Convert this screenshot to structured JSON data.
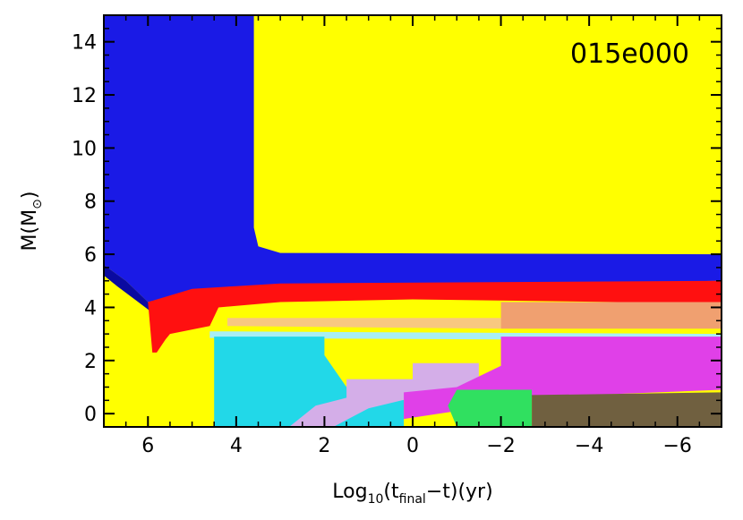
{
  "chart_data": {
    "type": "heatmap",
    "title": "",
    "model_label": "015e000",
    "xlabel": {
      "main": "Log",
      "sub1": "10",
      "mid": "(t",
      "sub2": "final",
      "end": "−t)(yr)"
    },
    "ylabel": {
      "main": "M(M",
      "sub": "⊙",
      "end": ")"
    },
    "xlim": [
      7,
      -7
    ],
    "ylim": [
      -0.5,
      15
    ],
    "x_reversed": true,
    "x_ticks": [
      {
        "value": 6,
        "label": "6"
      },
      {
        "value": 4,
        "label": "4"
      },
      {
        "value": 2,
        "label": "2"
      },
      {
        "value": 0,
        "label": "0"
      },
      {
        "value": -2,
        "label": "−2"
      },
      {
        "value": -4,
        "label": "−4"
      },
      {
        "value": -6,
        "label": "−6"
      }
    ],
    "y_ticks": [
      {
        "value": 0,
        "label": "0"
      },
      {
        "value": 2,
        "label": "2"
      },
      {
        "value": 4,
        "label": "4"
      },
      {
        "value": 6,
        "label": "6"
      },
      {
        "value": 8,
        "label": "8"
      },
      {
        "value": 10,
        "label": "10"
      },
      {
        "value": 12,
        "label": "12"
      },
      {
        "value": 14,
        "label": "14"
      }
    ],
    "grid": false,
    "colors": {
      "yellow": "#ffff00",
      "blue": "#1a1ae6",
      "red": "#ff1010",
      "cyan": "#22d8e8",
      "pale_cyan": "#a8eef4",
      "lavender": "#d4aee8",
      "magenta": "#e040e8",
      "green": "#30e060",
      "olive": "#706040",
      "salmon": "#f0a070",
      "orange": "#f8c880",
      "dark_blue": "#0a0aa0"
    },
    "regions": [
      {
        "name": "envelope-yellow",
        "color": "yellow",
        "polygon": [
          [
            7,
            -0.5
          ],
          [
            -7,
            -0.5
          ],
          [
            -7,
            15
          ],
          [
            7,
            15
          ]
        ]
      },
      {
        "name": "outer-convective-blue",
        "color": "blue",
        "polygon": [
          [
            7,
            15
          ],
          [
            3.6,
            15
          ],
          [
            3.6,
            7
          ],
          [
            3.5,
            6.3
          ],
          [
            3,
            6.05
          ],
          [
            -7,
            6.0
          ],
          [
            -7,
            5.0
          ],
          [
            3,
            4.8
          ],
          [
            4,
            4.7
          ],
          [
            5,
            4.6
          ],
          [
            6,
            4.2
          ],
          [
            6.5,
            5.0
          ],
          [
            7,
            5.6
          ]
        ]
      },
      {
        "name": "deep-blue-tail",
        "color": "dark_blue",
        "polygon": [
          [
            7,
            5.6
          ],
          [
            6.5,
            5.0
          ],
          [
            6,
            4.2
          ],
          [
            5.9,
            3.8
          ],
          [
            6.3,
            4.3
          ],
          [
            6.7,
            4.8
          ],
          [
            7,
            5.2
          ]
        ]
      },
      {
        "name": "hydrogen-shell-red",
        "color": "red",
        "polygon": [
          [
            5.9,
            2.3
          ],
          [
            6,
            4.2
          ],
          [
            5,
            4.7
          ],
          [
            4,
            4.8
          ],
          [
            3,
            4.9
          ],
          [
            -7,
            5.0
          ],
          [
            -7,
            4.15
          ],
          [
            0,
            4.3
          ],
          [
            3,
            4.2
          ],
          [
            4.4,
            4.0
          ],
          [
            4.6,
            3.3
          ],
          [
            5.5,
            3.0
          ],
          [
            5.6,
            2.8
          ],
          [
            5.8,
            2.3
          ]
        ]
      },
      {
        "name": "orange-shell-band",
        "color": "salmon",
        "polygon": [
          [
            -2,
            4.2
          ],
          [
            -7,
            4.2
          ],
          [
            -7,
            3.2
          ],
          [
            -2,
            3.2
          ]
        ]
      },
      {
        "name": "pale-band",
        "color": "orange",
        "polygon": [
          [
            4.2,
            3.6
          ],
          [
            -2,
            3.6
          ],
          [
            -2,
            3.2
          ],
          [
            4.2,
            3.3
          ]
        ]
      },
      {
        "name": "helium-core-edge-cyan",
        "color": "pale_cyan",
        "polygon": [
          [
            4.6,
            3.1
          ],
          [
            -7,
            3.0
          ],
          [
            -7,
            2.75
          ],
          [
            4.6,
            2.85
          ]
        ]
      },
      {
        "name": "helium-core-cyan",
        "color": "cyan",
        "polygon": [
          [
            4.5,
            2.9
          ],
          [
            2.0,
            2.9
          ],
          [
            2.0,
            2.2
          ],
          [
            1.5,
            1.0
          ],
          [
            1.0,
            0.8
          ],
          [
            0.5,
            1.0
          ],
          [
            0.2,
            0.5
          ],
          [
            0.2,
            -0.5
          ],
          [
            4.5,
            -0.5
          ]
        ]
      },
      {
        "name": "lavender-shell",
        "color": "lavender",
        "polygon": [
          [
            1.5,
            1.3
          ],
          [
            0,
            1.3
          ],
          [
            0,
            1.9
          ],
          [
            -1.5,
            1.9
          ],
          [
            -1.5,
            1.1
          ],
          [
            -0.8,
            0.9
          ],
          [
            0,
            0.6
          ],
          [
            1.0,
            0.2
          ],
          [
            1.8,
            -0.5
          ],
          [
            2.8,
            -0.5
          ],
          [
            2.2,
            0.3
          ],
          [
            1.5,
            0.6
          ]
        ]
      },
      {
        "name": "magenta-shell",
        "color": "magenta",
        "polygon": [
          [
            -2,
            2.9
          ],
          [
            -7,
            2.9
          ],
          [
            -7,
            0.9
          ],
          [
            -4,
            0.7
          ],
          [
            -2,
            0.6
          ],
          [
            -1,
            0.1
          ],
          [
            0.2,
            -0.2
          ],
          [
            0.2,
            0.8
          ],
          [
            -1,
            1.0
          ],
          [
            -2,
            1.8
          ]
        ]
      },
      {
        "name": "green-shell",
        "color": "green",
        "polygon": [
          [
            -1,
            0.9
          ],
          [
            -2.7,
            0.9
          ],
          [
            -2.7,
            -0.5
          ],
          [
            -1,
            -0.5
          ],
          [
            -0.8,
            0.3
          ]
        ]
      },
      {
        "name": "core-olive",
        "color": "olive",
        "polygon": [
          [
            -2.7,
            0.7
          ],
          [
            -7,
            0.8
          ],
          [
            -7,
            -0.5
          ],
          [
            -2.7,
            -0.5
          ]
        ]
      }
    ]
  }
}
